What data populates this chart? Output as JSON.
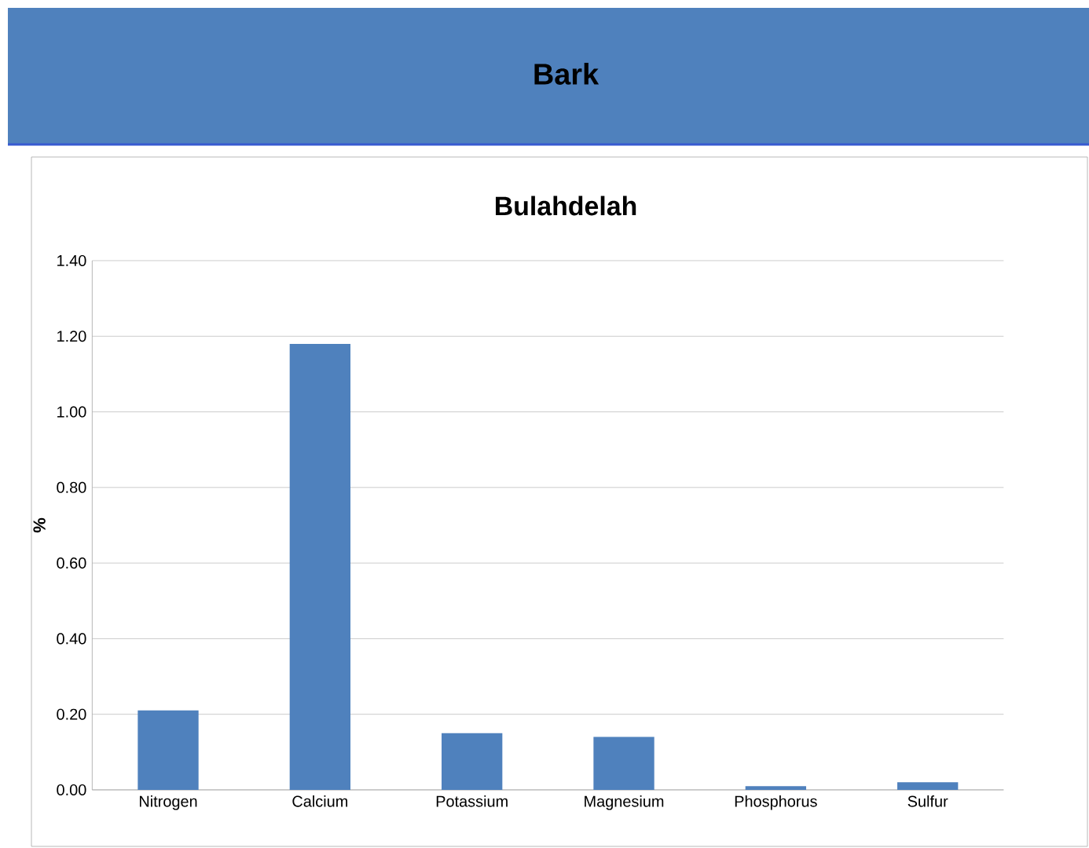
{
  "chart_data": {
    "type": "bar",
    "title": "Bark",
    "subtitle": "Bulahdelah",
    "ylabel": "%",
    "categories": [
      "Nitrogen",
      "Calcium",
      "Potassium",
      "Magnesium",
      "Phosphorus",
      "Sulfur"
    ],
    "values": [
      0.21,
      1.18,
      0.15,
      0.14,
      0.01,
      0.02
    ],
    "color": "#4f81bd",
    "ylim": [
      0,
      1.4
    ],
    "yticks": [
      {
        "value": 0,
        "label": "0.00"
      },
      {
        "value": 0.2,
        "label": "0.20"
      },
      {
        "value": 0.4,
        "label": "0.40"
      },
      {
        "value": 0.6,
        "label": "0.60"
      },
      {
        "value": 0.8,
        "label": "0.80"
      },
      {
        "value": 1.0,
        "label": "1.00"
      },
      {
        "value": 1.2,
        "label": "1.20"
      },
      {
        "value": 1.4,
        "label": "1.40"
      }
    ],
    "grid": "y"
  }
}
